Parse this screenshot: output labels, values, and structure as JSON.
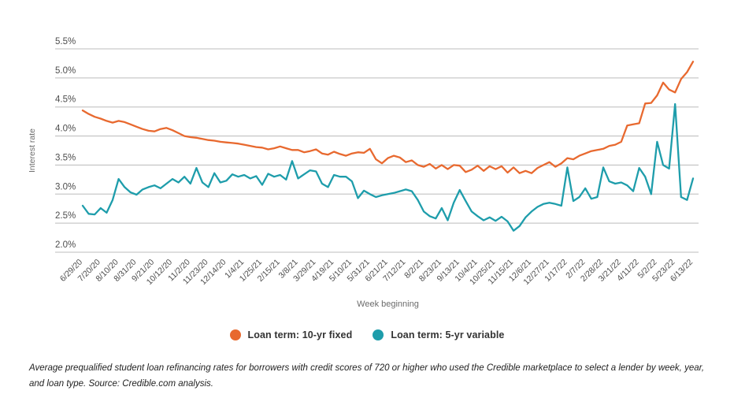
{
  "caption": "Average prequalified student loan refinancing rates for borrowers with credit scores of 720 or higher who used the Credible marketplace to select a lender by week, year, and loan type. Source: Credible.com analysis.",
  "colors": {
    "orange": "#E8692F",
    "teal": "#1E9DAB",
    "gridline": "#c9c9c9",
    "axis_text": "#4d4d4d",
    "axis_title_text": "#6b6b6b"
  },
  "chart_data": {
    "type": "line",
    "title": "",
    "xlabel": "Week beginning",
    "ylabel": "Interest rate",
    "ylim": [
      2.0,
      5.5
    ],
    "grid": "horizontal",
    "legend_position": "bottom",
    "y_ticks": [
      {
        "value": 5.5,
        "label": "5.5%"
      },
      {
        "value": 5.0,
        "label": "5.0%"
      },
      {
        "value": 4.5,
        "label": "4.5%"
      },
      {
        "value": 4.0,
        "label": "4.0%"
      },
      {
        "value": 3.5,
        "label": "3.5%"
      },
      {
        "value": 3.0,
        "label": "3.0%"
      },
      {
        "value": 2.5,
        "label": "2.5%"
      },
      {
        "value": 2.0,
        "label": "2.0%"
      }
    ],
    "x_tick_step": 3,
    "x_tick_labels": [
      "6/29/20",
      "7/20/20",
      "8/10/20",
      "8/31/20",
      "9/21/20",
      "10/12/20",
      "11/2/20",
      "11/23/20",
      "12/14/20",
      "1/4/21",
      "1/25/21",
      "2/15/21",
      "3/8/21",
      "3/29/21",
      "4/19/21",
      "5/10/21",
      "5/31/21",
      "6/21/21",
      "7/12/21",
      "8/2/21",
      "8/23/21",
      "9/13/21",
      "10/4/21",
      "10/25/21",
      "11/15/21",
      "12/6/21",
      "12/27/21",
      "1/17/22",
      "2/7/22",
      "2/28/22",
      "3/21/22",
      "4/11/22",
      "5/2/22",
      "5/23/22",
      "6/13/22"
    ],
    "series": [
      {
        "name": "Loan term: 10-yr fixed",
        "color": "#E8692F",
        "values": [
          4.44,
          4.38,
          4.33,
          4.3,
          4.26,
          4.23,
          4.26,
          4.24,
          4.2,
          4.16,
          4.12,
          4.09,
          4.08,
          4.12,
          4.14,
          4.1,
          4.05,
          4.0,
          3.98,
          3.97,
          3.95,
          3.93,
          3.92,
          3.9,
          3.89,
          3.88,
          3.87,
          3.85,
          3.83,
          3.81,
          3.8,
          3.77,
          3.79,
          3.82,
          3.79,
          3.76,
          3.76,
          3.72,
          3.74,
          3.77,
          3.7,
          3.68,
          3.73,
          3.69,
          3.66,
          3.7,
          3.72,
          3.71,
          3.78,
          3.6,
          3.53,
          3.62,
          3.66,
          3.63,
          3.55,
          3.58,
          3.5,
          3.47,
          3.52,
          3.44,
          3.5,
          3.43,
          3.5,
          3.49,
          3.38,
          3.42,
          3.49,
          3.4,
          3.48,
          3.43,
          3.48,
          3.37,
          3.46,
          3.36,
          3.4,
          3.36,
          3.45,
          3.5,
          3.55,
          3.47,
          3.53,
          3.62,
          3.6,
          3.66,
          3.7,
          3.74,
          3.76,
          3.78,
          3.83,
          3.85,
          3.9,
          4.18,
          4.2,
          4.22,
          4.56,
          4.57,
          4.7,
          4.92,
          4.8,
          4.75,
          4.98,
          5.1,
          5.28
        ]
      },
      {
        "name": "Loan term: 5-yr variable",
        "color": "#1E9DAB",
        "values": [
          2.8,
          2.66,
          2.65,
          2.76,
          2.68,
          2.9,
          3.26,
          3.12,
          3.03,
          2.99,
          3.08,
          3.12,
          3.15,
          3.1,
          3.18,
          3.26,
          3.2,
          3.3,
          3.18,
          3.45,
          3.2,
          3.12,
          3.36,
          3.2,
          3.23,
          3.34,
          3.3,
          3.33,
          3.27,
          3.31,
          3.16,
          3.35,
          3.3,
          3.33,
          3.25,
          3.57,
          3.27,
          3.34,
          3.41,
          3.39,
          3.18,
          3.12,
          3.33,
          3.3,
          3.3,
          3.22,
          2.93,
          3.06,
          3.0,
          2.95,
          2.98,
          3.0,
          3.02,
          3.05,
          3.08,
          3.05,
          2.9,
          2.7,
          2.62,
          2.58,
          2.76,
          2.55,
          2.85,
          3.07,
          2.88,
          2.7,
          2.62,
          2.55,
          2.6,
          2.54,
          2.61,
          2.53,
          2.37,
          2.45,
          2.6,
          2.7,
          2.78,
          2.83,
          2.85,
          2.83,
          2.8,
          3.46,
          2.88,
          2.95,
          3.1,
          2.92,
          2.95,
          3.46,
          3.22,
          3.18,
          3.2,
          3.15,
          3.05,
          3.45,
          3.3,
          3.0,
          3.9,
          3.5,
          3.44,
          4.55,
          2.95,
          2.9,
          3.27
        ]
      }
    ]
  }
}
